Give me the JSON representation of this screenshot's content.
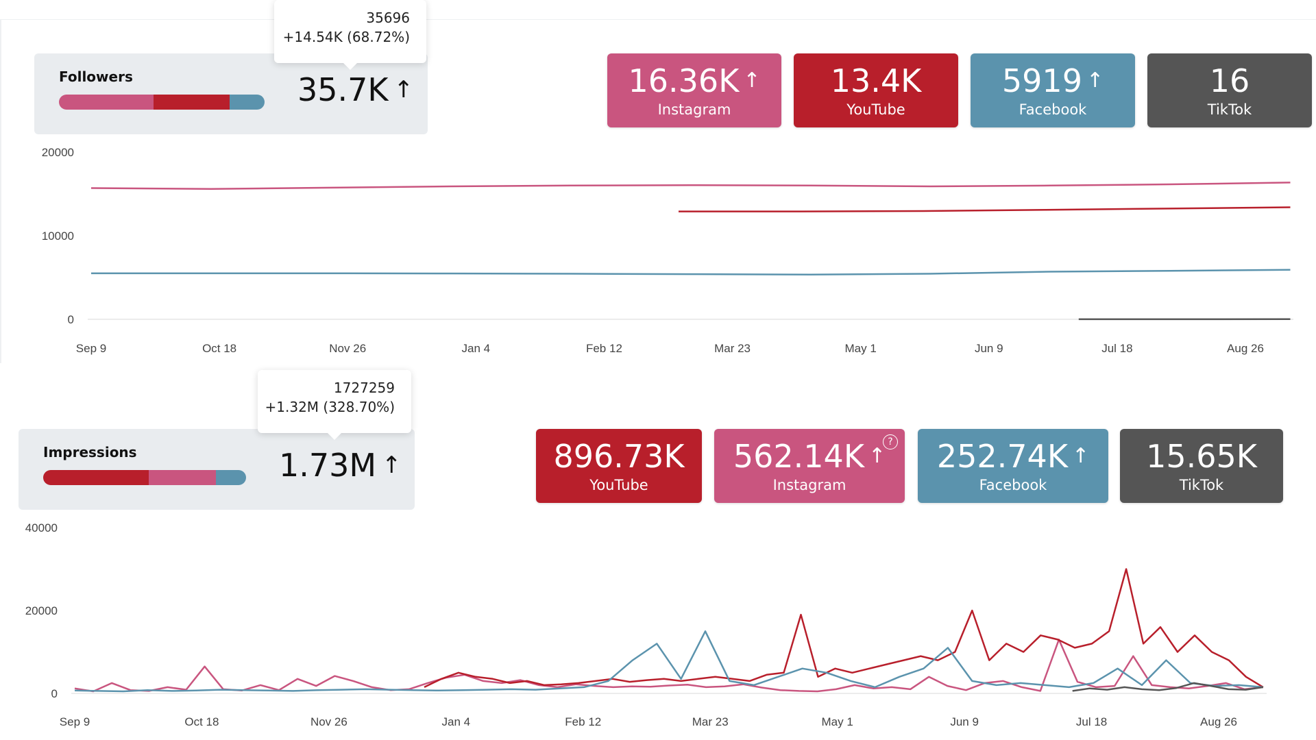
{
  "colors": {
    "instagram": "#c9557f",
    "youtube": "#b81f2b",
    "facebook": "#5b93ad",
    "tiktok": "#555555"
  },
  "followers": {
    "label": "Followers",
    "total": "35.7K",
    "tooltip_value": "35696",
    "tooltip_change": "+14.54K (68.72%)",
    "breakdown_order": [
      "instagram",
      "youtube",
      "facebook"
    ],
    "breakdown_shares": [
      0.46,
      0.37,
      0.17
    ],
    "cards": [
      {
        "platform": "instagram",
        "value": "16.36K",
        "label": "Instagram",
        "arrow": true
      },
      {
        "platform": "youtube",
        "value": "13.4K",
        "label": "YouTube",
        "arrow": false
      },
      {
        "platform": "facebook",
        "value": "5919",
        "label": "Facebook",
        "arrow": true
      },
      {
        "platform": "tiktok",
        "value": "16",
        "label": "TikTok",
        "arrow": false
      }
    ]
  },
  "impressions": {
    "label": "Impressions",
    "total": "1.73M",
    "tooltip_value": "1727259",
    "tooltip_change": "+1.32M (328.70%)",
    "breakdown_order": [
      "youtube",
      "instagram",
      "facebook"
    ],
    "breakdown_shares": [
      0.52,
      0.33,
      0.15
    ],
    "cards": [
      {
        "platform": "youtube",
        "value": "896.73K",
        "label": "YouTube",
        "arrow": false
      },
      {
        "platform": "instagram",
        "value": "562.14K",
        "label": "Instagram",
        "arrow": true,
        "help": true
      },
      {
        "platform": "facebook",
        "value": "252.74K",
        "label": "Facebook",
        "arrow": true
      },
      {
        "platform": "tiktok",
        "value": "15.65K",
        "label": "TikTok",
        "arrow": false
      }
    ]
  },
  "chart_data": [
    {
      "type": "line",
      "x_ticks": [
        "Sep 9",
        "Oct 18",
        "Nov 26",
        "Jan 4",
        "Feb 12",
        "Mar 23",
        "May 1",
        "Jun 9",
        "Jul 18",
        "Aug 26"
      ],
      "y_ticks": [
        0,
        10000,
        20000
      ],
      "ylim": [
        0,
        20000
      ],
      "grid": false,
      "series": [
        {
          "name": "Instagram",
          "color": "#c9557f",
          "start_tick": 0,
          "end_tick": 9.35,
          "values": [
            15700,
            15600,
            15750,
            15900,
            16000,
            16050,
            16000,
            15900,
            16000,
            16150,
            16360
          ]
        },
        {
          "name": "YouTube",
          "color": "#b81f2b",
          "start_tick": 4.58,
          "end_tick": 9.35,
          "values": [
            12900,
            12900,
            12950,
            13100,
            13250,
            13400
          ]
        },
        {
          "name": "Facebook",
          "color": "#5b93ad",
          "start_tick": 0,
          "end_tick": 9.35,
          "values": [
            5500,
            5500,
            5500,
            5480,
            5450,
            5400,
            5350,
            5450,
            5700,
            5800,
            5919
          ]
        },
        {
          "name": "TikTok",
          "color": "#555555",
          "start_tick": 7.7,
          "end_tick": 9.35,
          "values": [
            5,
            8,
            12,
            16
          ]
        }
      ]
    },
    {
      "type": "line",
      "x_ticks": [
        "Sep 9",
        "Oct 18",
        "Nov 26",
        "Jan 4",
        "Feb 12",
        "Mar 23",
        "May 1",
        "Jun 9",
        "Jul 18",
        "Aug 26"
      ],
      "y_ticks": [
        0,
        20000,
        40000
      ],
      "ylim": [
        0,
        40000
      ],
      "grid": false,
      "series": [
        {
          "name": "Instagram",
          "color": "#c9557f",
          "start_tick": 0,
          "end_tick": 9.35,
          "values": [
            1200,
            500,
            2500,
            800,
            600,
            1500,
            900,
            6500,
            1000,
            700,
            2000,
            800,
            3500,
            1800,
            4200,
            3000,
            1500,
            800,
            1000,
            2500,
            3800,
            4500,
            3000,
            2500,
            3200,
            2000,
            1500,
            2200,
            1800,
            1500,
            1700,
            1600,
            1900,
            2100,
            1500,
            1700,
            2200,
            1400,
            800,
            600,
            500,
            1000,
            2000,
            1200,
            1500,
            1000,
            4000,
            1800,
            800,
            2500,
            3000,
            1500,
            600,
            13000,
            2800,
            1500,
            1800,
            9000,
            2000,
            1500,
            1200,
            1800,
            2500,
            1000,
            1500
          ]
        },
        {
          "name": "YouTube",
          "color": "#b81f2b",
          "start_tick": 2.75,
          "end_tick": 9.35,
          "values": [
            1500,
            3500,
            5000,
            4000,
            3500,
            2500,
            3000,
            2000,
            2200,
            2500,
            3000,
            3500,
            2800,
            3200,
            3500,
            3000,
            3500,
            4000,
            3500,
            3000,
            4500,
            5000,
            19000,
            4000,
            6000,
            5000,
            6000,
            7000,
            8000,
            9000,
            8000,
            10000,
            20000,
            8000,
            12000,
            10000,
            14000,
            13000,
            11000,
            12000,
            15000,
            30000,
            12000,
            16000,
            10000,
            14000,
            10000,
            8000,
            4000,
            1500
          ]
        },
        {
          "name": "Facebook",
          "color": "#5b93ad",
          "start_tick": 0,
          "end_tick": 9.35,
          "values": [
            700,
            600,
            500,
            800,
            600,
            700,
            900,
            800,
            700,
            600,
            800,
            900,
            1000,
            900,
            800,
            700,
            800,
            900,
            1000,
            900,
            1200,
            1500,
            3000,
            8000,
            12000,
            3500,
            15000,
            3000,
            2000,
            4000,
            6000,
            5000,
            3000,
            1500,
            4000,
            6000,
            11000,
            3000,
            2000,
            2500,
            2000,
            1500,
            2500,
            6000,
            2000,
            8000,
            2500,
            1800,
            2000,
            1500
          ]
        },
        {
          "name": "TikTok",
          "color": "#555555",
          "start_tick": 7.85,
          "end_tick": 9.35,
          "values": [
            600,
            1200,
            900,
            1500,
            1000,
            800,
            1300,
            2500,
            1800,
            1000,
            900,
            1500
          ]
        }
      ]
    }
  ]
}
